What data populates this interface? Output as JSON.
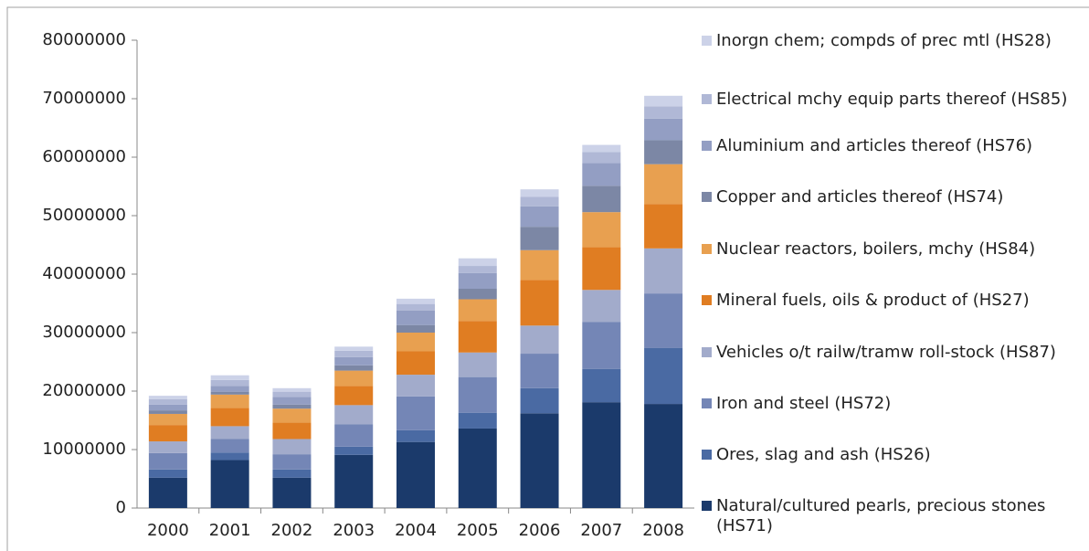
{
  "chart_data": {
    "type": "stacked-bar",
    "categories": [
      "2000",
      "2001",
      "2002",
      "2003",
      "2004",
      "2005",
      "2006",
      "2007",
      "2008"
    ],
    "ylim": [
      0,
      80000000
    ],
    "yticks": [
      0,
      10000000,
      20000000,
      30000000,
      40000000,
      50000000,
      60000000,
      70000000,
      80000000
    ],
    "grid": false,
    "legend": "right",
    "series": [
      {
        "name": "Natural/cultured pearls, precious stones (HS71)",
        "color": "#1b3a6b",
        "values": [
          5200000,
          8200000,
          5200000,
          9100000,
          11300000,
          13600000,
          16200000,
          18100000,
          17800000
        ]
      },
      {
        "name": "Ores, slag and ash (HS26)",
        "color": "#4a6aa3",
        "values": [
          1400000,
          1300000,
          1400000,
          1400000,
          2000000,
          2700000,
          4300000,
          5700000,
          9600000
        ]
      },
      {
        "name": "Iron and steel (HS72)",
        "color": "#7486b6",
        "values": [
          2800000,
          2300000,
          2600000,
          3800000,
          5800000,
          6100000,
          5900000,
          8000000,
          9300000
        ]
      },
      {
        "name": "Vehicles o/t railw/tramw roll-stock (HS87)",
        "color": "#a2abcb",
        "values": [
          2000000,
          2200000,
          2600000,
          3300000,
          3700000,
          4200000,
          4800000,
          5500000,
          7700000
        ]
      },
      {
        "name": "Mineral fuels, oils & product of (HS27)",
        "color": "#e07d22",
        "values": [
          2800000,
          3100000,
          2800000,
          3300000,
          4000000,
          5400000,
          7800000,
          7300000,
          7600000
        ]
      },
      {
        "name": "Nuclear reactors, boilers, mchy (HS84)",
        "color": "#e8a050",
        "values": [
          1900000,
          2300000,
          2400000,
          2600000,
          3200000,
          3700000,
          5100000,
          6000000,
          6800000
        ]
      },
      {
        "name": "Copper and articles thereof (HS74)",
        "color": "#7c87a5",
        "values": [
          600000,
          500000,
          700000,
          900000,
          1300000,
          1800000,
          4000000,
          4500000,
          4100000
        ]
      },
      {
        "name": "Aluminium and articles thereof (HS76)",
        "color": "#939ec3",
        "values": [
          1000000,
          1000000,
          1300000,
          1400000,
          2500000,
          2700000,
          3500000,
          3900000,
          3700000
        ]
      },
      {
        "name": "Electrical mchy equip parts thereof (HS85)",
        "color": "#b0b8d6",
        "values": [
          900000,
          1000000,
          900000,
          1100000,
          1100000,
          1200000,
          1600000,
          1900000,
          2100000
        ]
      },
      {
        "name": "Inorgn chem; compds of prec mtl (HS28)",
        "color": "#ccd2e8",
        "values": [
          600000,
          800000,
          600000,
          700000,
          900000,
          1300000,
          1300000,
          1200000,
          1800000
        ]
      }
    ]
  }
}
